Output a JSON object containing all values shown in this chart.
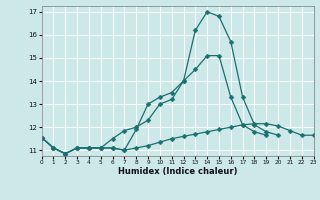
{
  "xlabel": "Humidex (Indice chaleur)",
  "bg_color": "#cce8e8",
  "line_color": "#1a7070",
  "grid_color": "#ffffff",
  "xlim": [
    0,
    23
  ],
  "ylim": [
    10.75,
    17.25
  ],
  "yticks": [
    11,
    12,
    13,
    14,
    15,
    16,
    17
  ],
  "xticks": [
    0,
    1,
    2,
    3,
    4,
    5,
    6,
    7,
    8,
    9,
    10,
    11,
    12,
    13,
    14,
    15,
    16,
    17,
    18,
    19,
    20,
    21,
    22,
    23
  ],
  "line1_x": [
    0,
    1,
    2,
    3,
    4,
    5,
    6,
    7,
    8,
    9,
    10,
    11,
    12,
    13,
    14,
    15,
    16,
    17,
    18,
    19,
    20,
    21,
    22,
    23
  ],
  "line1_y": [
    11.55,
    11.1,
    10.85,
    11.1,
    11.1,
    11.1,
    11.1,
    11.0,
    11.9,
    13.0,
    13.3,
    13.5,
    14.0,
    16.2,
    17.0,
    16.8,
    15.7,
    13.3,
    12.1,
    11.8,
    11.65,
    null,
    null,
    null
  ],
  "line2_x": [
    0,
    1,
    2,
    3,
    4,
    5,
    6,
    7,
    8,
    9,
    10,
    11,
    12,
    13,
    14,
    15,
    16,
    17,
    18,
    19,
    20,
    21,
    22,
    23
  ],
  "line2_y": [
    11.55,
    11.1,
    10.85,
    11.1,
    11.1,
    11.1,
    11.5,
    11.85,
    12.0,
    12.3,
    13.0,
    13.2,
    14.0,
    14.5,
    15.1,
    15.1,
    13.3,
    12.1,
    11.8,
    11.65,
    null,
    null,
    null,
    null
  ],
  "line3_x": [
    0,
    1,
    2,
    3,
    4,
    5,
    6,
    7,
    8,
    9,
    10,
    11,
    12,
    13,
    14,
    15,
    16,
    17,
    18,
    19,
    20,
    21,
    22,
    23
  ],
  "line3_y": [
    11.55,
    11.1,
    10.85,
    11.1,
    11.1,
    11.1,
    11.1,
    11.0,
    11.1,
    11.2,
    11.35,
    11.5,
    11.6,
    11.7,
    11.8,
    11.9,
    12.0,
    12.1,
    12.15,
    12.15,
    12.05,
    11.85,
    11.65,
    11.65
  ]
}
